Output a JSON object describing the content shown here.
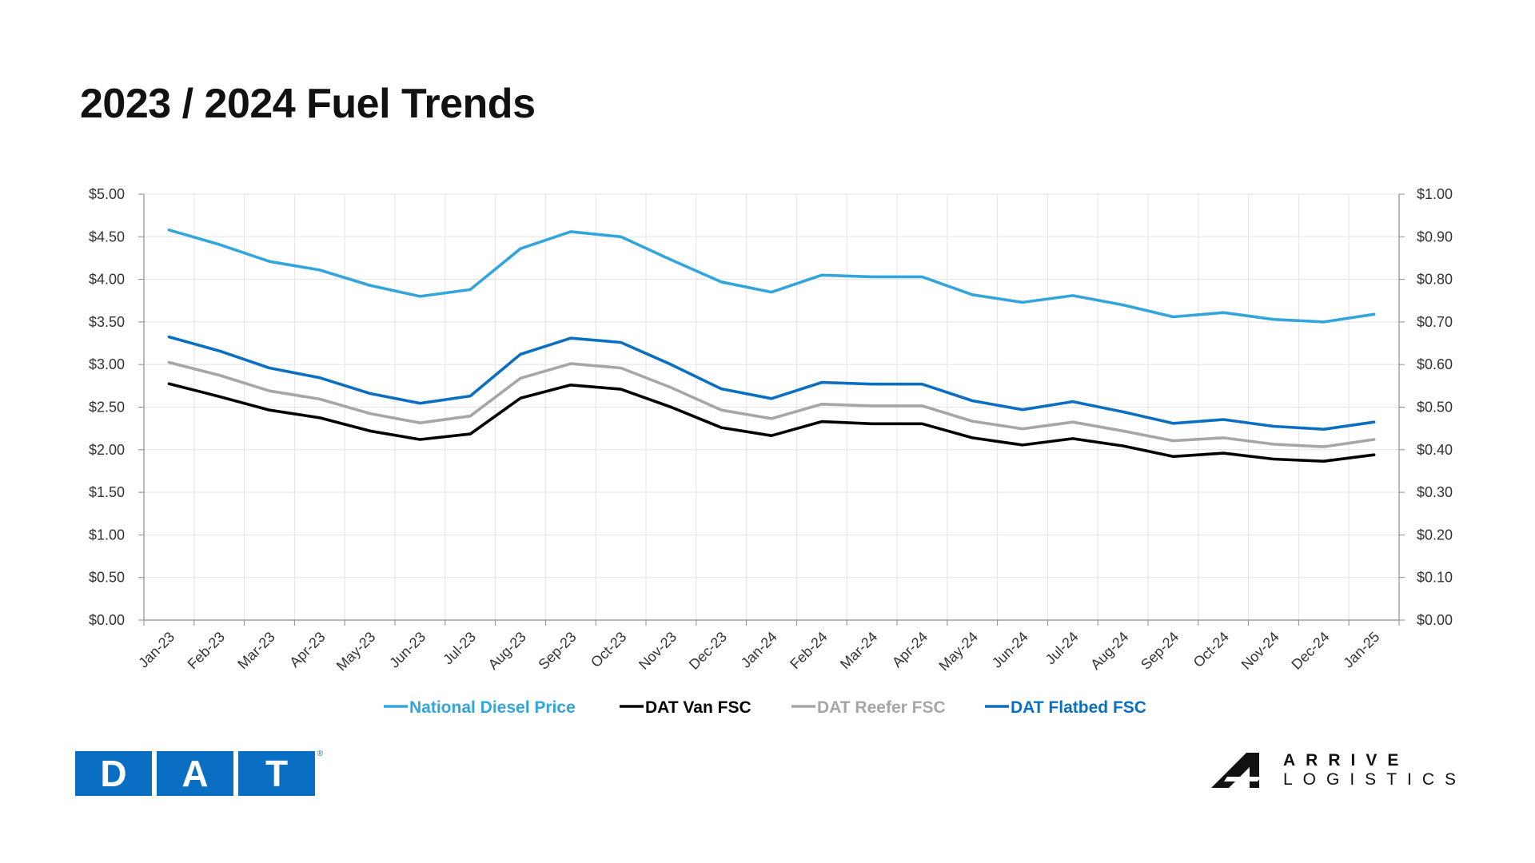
{
  "title": "2023 / 2024 Fuel Trends",
  "chart_data": {
    "type": "line",
    "categories": [
      "Jan-23",
      "Feb-23",
      "Mar-23",
      "Apr-23",
      "May-23",
      "Jun-23",
      "Jul-23",
      "Aug-23",
      "Sep-23",
      "Oct-23",
      "Nov-23",
      "Dec-23",
      "Jan-24",
      "Feb-24",
      "Mar-24",
      "Apr-24",
      "May-24",
      "Jun-24",
      "Jul-24",
      "Aug-24",
      "Sep-24",
      "Oct-24",
      "Nov-24",
      "Dec-24",
      "Jan-25"
    ],
    "y_left": {
      "range": [
        0,
        5
      ],
      "ticks": [
        "$0.00",
        "$0.50",
        "$1.00",
        "$1.50",
        "$2.00",
        "$2.50",
        "$3.00",
        "$3.50",
        "$4.00",
        "$4.50",
        "$5.00"
      ]
    },
    "y_right": {
      "range": [
        0,
        1
      ],
      "ticks": [
        "$0.00",
        "$0.10",
        "$0.20",
        "$0.30",
        "$0.40",
        "$0.50",
        "$0.60",
        "$0.70",
        "$0.80",
        "$0.90",
        "$1.00"
      ]
    },
    "grid": true,
    "legend_position": "bottom",
    "series": [
      {
        "name": "National Diesel Price",
        "axis": "left",
        "color": "#33a5dd",
        "values": [
          4.58,
          4.41,
          4.21,
          4.11,
          3.93,
          3.8,
          3.88,
          4.36,
          4.56,
          4.5,
          4.23,
          3.97,
          3.85,
          4.05,
          4.03,
          4.03,
          3.82,
          3.73,
          3.81,
          3.7,
          3.56,
          3.61,
          3.53,
          3.5,
          3.59
        ]
      },
      {
        "name": "DAT Van FSC",
        "axis": "right",
        "color": "#000000",
        "values": [
          0.555,
          0.525,
          0.493,
          0.475,
          0.444,
          0.424,
          0.437,
          0.521,
          0.552,
          0.542,
          0.5,
          0.452,
          0.433,
          0.466,
          0.461,
          0.461,
          0.428,
          0.411,
          0.426,
          0.409,
          0.384,
          0.392,
          0.378,
          0.373,
          0.388
        ]
      },
      {
        "name": "DAT Reefer FSC",
        "axis": "right",
        "color": "#a6a6a6",
        "values": [
          0.605,
          0.575,
          0.538,
          0.519,
          0.485,
          0.463,
          0.479,
          0.568,
          0.602,
          0.592,
          0.546,
          0.493,
          0.473,
          0.507,
          0.503,
          0.503,
          0.467,
          0.449,
          0.465,
          0.444,
          0.421,
          0.428,
          0.413,
          0.407,
          0.424
        ]
      },
      {
        "name": "DAT Flatbed FSC",
        "axis": "right",
        "color": "#0a6fc2",
        "values": [
          0.665,
          0.632,
          0.592,
          0.569,
          0.532,
          0.509,
          0.526,
          0.624,
          0.662,
          0.652,
          0.6,
          0.543,
          0.52,
          0.558,
          0.554,
          0.554,
          0.515,
          0.494,
          0.513,
          0.489,
          0.462,
          0.471,
          0.455,
          0.448,
          0.465
        ]
      }
    ]
  },
  "logos": {
    "dat_letters": [
      "D",
      "A",
      "T"
    ],
    "dat_reg": "®",
    "arrive_line1": "ARRIVE",
    "arrive_line2": "LOGISTICS"
  }
}
